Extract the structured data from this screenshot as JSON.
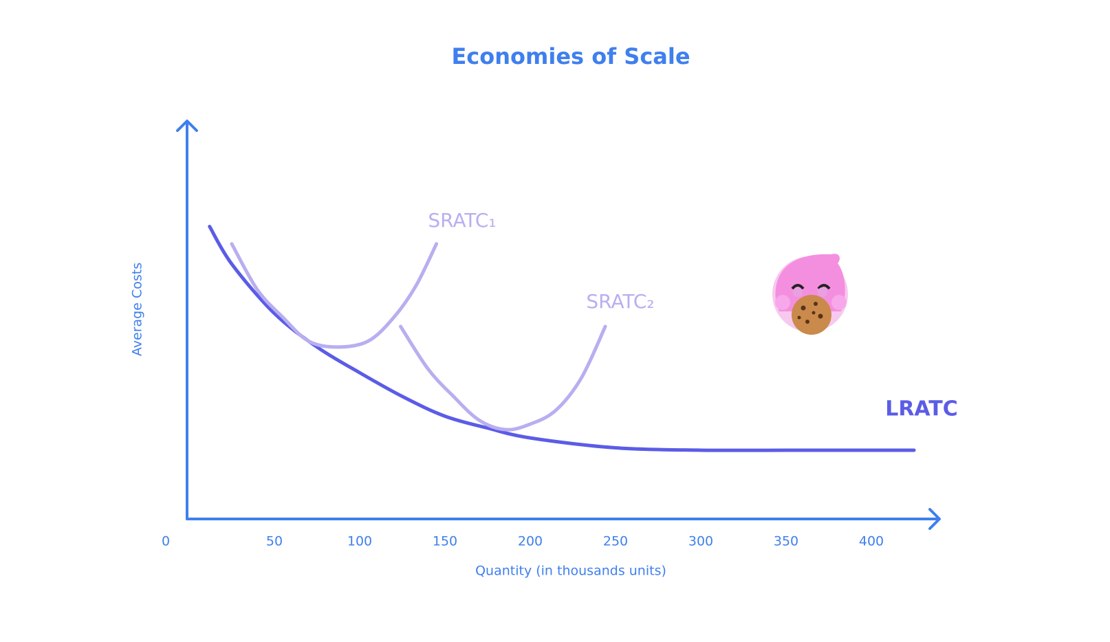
{
  "chart_data": {
    "type": "line",
    "title": "Economies of Scale",
    "x_label": "Quantity (in thousands units)",
    "y_label": "Average Costs",
    "xlim": [
      0,
      430
    ],
    "ylim": [
      0,
      100
    ],
    "xticks": [
      0,
      50,
      100,
      150,
      200,
      250,
      300,
      350,
      400
    ],
    "axis_color": "#3f7fee",
    "series": [
      {
        "name": "LRATC",
        "color": "#5b5ce6",
        "x": [
          12,
          25,
          50,
          75,
          100,
          125,
          150,
          175,
          200,
          250,
          300,
          350,
          400,
          425
        ],
        "values": [
          74,
          64.5,
          52,
          43.5,
          37,
          31,
          26,
          23,
          20.5,
          18,
          17.4,
          17.4,
          17.4,
          17.4
        ]
      },
      {
        "name": "SRATC₁",
        "color": "#b9aef0",
        "x": [
          25,
          40,
          55,
          70,
          87,
          105,
          120,
          133,
          145
        ],
        "values": [
          69.6,
          58,
          51,
          45,
          43.5,
          45,
          51,
          59,
          69.6
        ]
      },
      {
        "name": "SRATC₂",
        "color": "#b9aef0",
        "x": [
          124,
          140,
          155,
          170,
          185.5,
          200,
          215,
          230,
          244
        ],
        "values": [
          48.7,
          38,
          31,
          25,
          22.6,
          24,
          27.5,
          35.7,
          48.7
        ]
      }
    ]
  }
}
